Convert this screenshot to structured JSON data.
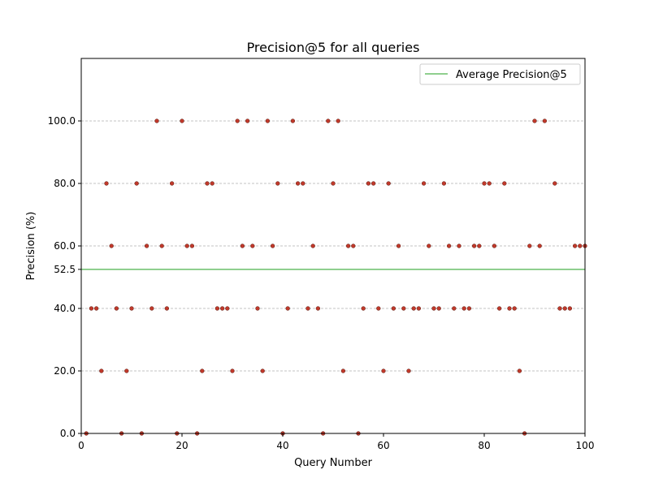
{
  "chart_data": {
    "type": "scatter",
    "title": "Precision@5 for all queries",
    "xlabel": "Query Number",
    "ylabel": "Precision (%)",
    "xlim": [
      0,
      100
    ],
    "ylim": [
      0,
      100
    ],
    "x_ticks": [
      "0",
      "20",
      "40",
      "60",
      "80",
      "100"
    ],
    "y_ticks": [
      "0.0",
      "20.0",
      "40.0",
      "52.5",
      "60.0",
      "80.0",
      "100.0"
    ],
    "grid": "y-dashed",
    "legend_position": "top-right",
    "average_line": {
      "label": "Average Precision@5",
      "value": 52.5,
      "color": "#6abf69"
    },
    "point_color": "#c0392b",
    "series": [
      {
        "x": [
          1,
          2,
          3,
          4,
          5,
          6,
          7,
          8,
          9,
          10,
          11,
          12,
          13,
          14,
          15,
          16,
          17,
          18,
          19,
          20,
          21,
          22,
          23,
          24,
          25,
          26,
          27,
          28,
          29,
          30,
          31,
          32,
          33,
          34,
          35,
          36,
          37,
          38,
          39,
          40,
          41,
          42,
          43,
          44,
          45,
          46,
          47,
          48,
          49,
          50,
          51,
          52,
          53,
          54,
          55,
          56,
          57,
          58,
          59,
          60,
          61,
          62,
          63,
          64,
          65,
          66,
          67,
          68,
          69,
          70,
          71,
          72,
          73,
          74,
          75,
          76,
          77,
          78,
          79,
          80,
          81,
          82,
          83,
          84,
          85,
          86,
          87,
          88,
          89,
          90,
          91,
          92,
          93,
          94,
          95,
          96,
          97,
          98,
          99,
          100
        ],
        "y": [
          0,
          40,
          40,
          20,
          80,
          60,
          40,
          0,
          20,
          40,
          80,
          0,
          60,
          40,
          100,
          60,
          40,
          80,
          0,
          100,
          60,
          60,
          0,
          20,
          80,
          80,
          40,
          40,
          40,
          20,
          100,
          60,
          100,
          60,
          40,
          20,
          100,
          60,
          80,
          0,
          40,
          100,
          80,
          80,
          40,
          60,
          40,
          0,
          100,
          80,
          100,
          20,
          60,
          60,
          0,
          40,
          80,
          80,
          40,
          20,
          80,
          40,
          60,
          40,
          20,
          40,
          40,
          80,
          60,
          40,
          40,
          80,
          60,
          40,
          60,
          40,
          40,
          60,
          60,
          80,
          80,
          60,
          40,
          80,
          40,
          40,
          20,
          0,
          60,
          100,
          60,
          100,
          null,
          80,
          40,
          40,
          40,
          60,
          60,
          60
        ]
      }
    ]
  }
}
